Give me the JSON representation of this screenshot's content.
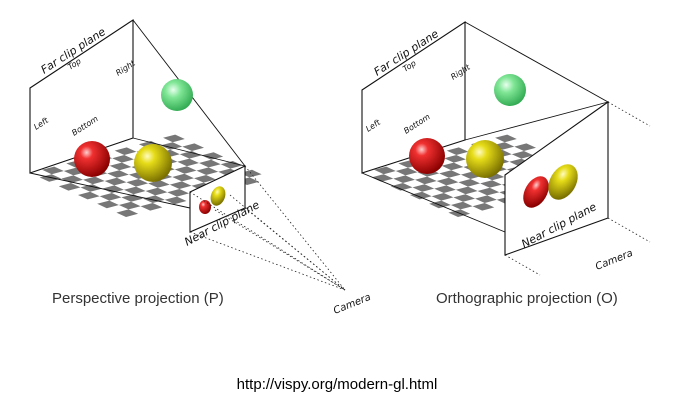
{
  "perspective": {
    "far_clip_label": "Far clip plane",
    "top_label": "Top",
    "right_label": "Right",
    "left_label": "Left",
    "bottom_label": "Bottom",
    "near_clip_label": "Near clip plane",
    "camera_label": "Camera",
    "caption": "Perspective projection (P)"
  },
  "orthographic": {
    "far_clip_label": "Far clip plane",
    "top_label": "Top",
    "right_label": "Right",
    "left_label": "Left",
    "bottom_label": "Bottom",
    "near_clip_label": "Near clip plane",
    "camera_label": "Camera",
    "caption": "Orthographic projection (O)"
  },
  "url": "http://vispy.org/modern-gl.html",
  "colors": {
    "red_sphere": "#e01e1e",
    "yellow_sphere": "#d6cc10",
    "green_sphere": "#5fd87a",
    "checker_dark": "#777777",
    "checker_light": "#ffffff"
  }
}
